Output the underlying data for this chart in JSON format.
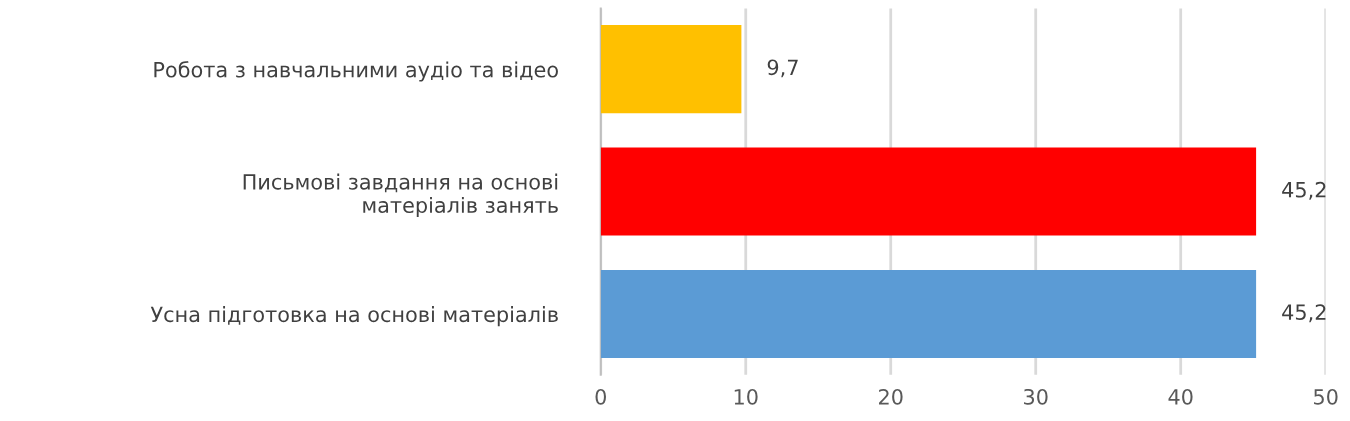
{
  "chart_data": {
    "type": "bar",
    "orientation": "horizontal",
    "categories": [
      "Робота з навчальними аудіо та відео",
      "Письмові завдання на основі\nматеріалів занять",
      "Усна підготовка на основі матеріалів"
    ],
    "values": [
      9.7,
      45.2,
      45.2
    ],
    "colors": [
      "#ffc000",
      "#ff0000",
      "#5b9bd5"
    ],
    "value_labels": [
      "9,7",
      "45,2",
      "45,2"
    ],
    "xlim": [
      0,
      50
    ],
    "xticks": [
      0,
      10,
      20,
      30,
      40,
      50
    ],
    "grid": "x",
    "legend": false
  }
}
